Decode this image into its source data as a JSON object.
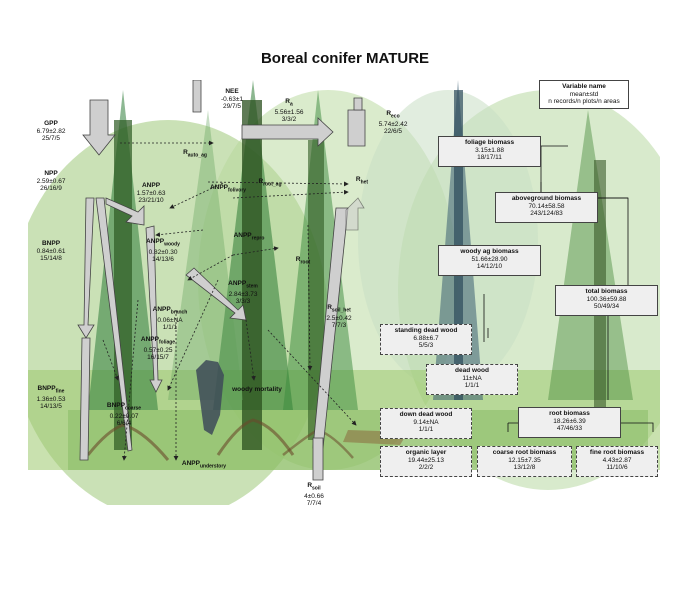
{
  "title": "Boreal conifer MATURE",
  "legend": {
    "line1": "Variable name",
    "line2": "mean±std",
    "line3": "n records/n plots/n areas"
  },
  "fluxes": {
    "gpp": {
      "name": "GPP",
      "value": "6.79±2.82",
      "n": "25/7/5"
    },
    "npp": {
      "name": "NPP",
      "value": "2.59±0.67",
      "n": "26/16/9"
    },
    "bnpp": {
      "name": "BNPP",
      "value": "0.84±0.61",
      "n": "15/14/8"
    },
    "bnpp_fine": {
      "name": "BNPP",
      "sub": "fine",
      "value": "1.36±0.53",
      "n": "14/13/5"
    },
    "bnpp_coarse": {
      "name": "BNPP",
      "sub": "coarse",
      "value": "0.22±0.07",
      "n": "6/6/4"
    },
    "anpp": {
      "name": "ANPP",
      "value": "1.57±0.63",
      "n": "23/21/10"
    },
    "anpp_woody": {
      "name": "ANPP",
      "sub": "woody",
      "value": "0.82±0.30",
      "n": "14/13/6"
    },
    "anpp_branch": {
      "name": "ANPP",
      "sub": "branch",
      "value": "0.06±NA",
      "n": "1/1/1"
    },
    "anpp_foliage": {
      "name": "ANPP",
      "sub": "foliage",
      "value": "0.57±0.25",
      "n": "16/15/7"
    },
    "anpp_stem": {
      "name": "ANPP",
      "sub": "stem",
      "value": "2.84±3.73",
      "n": "3/3/3"
    },
    "anpp_folivory": {
      "name": "ANPP",
      "sub": "folivory"
    },
    "anpp_repro": {
      "name": "ANPP",
      "sub": "repro"
    },
    "anpp_understory": {
      "name": "ANPP",
      "sub": "understory"
    },
    "nee": {
      "name": "NEE",
      "value": "-0.63±1",
      "n": "29/7/5"
    },
    "ra": {
      "name": "R",
      "sub": "a",
      "value": "5.56±1.56",
      "n": "3/3/2"
    },
    "reco": {
      "name": "R",
      "sub": "eco",
      "value": "5.74±2.42",
      "n": "22/6/5"
    },
    "rauto_ag": {
      "name": "R",
      "sub": "auto_ag"
    },
    "rroot_ag": {
      "name": "R",
      "sub": "root_ag"
    },
    "rhet": {
      "name": "R",
      "sub": "het"
    },
    "rroot": {
      "name": "R",
      "sub": "root"
    },
    "rsoil_het": {
      "name": "R",
      "sub": "soil_het",
      "value": "2.5±0.42",
      "n": "7/7/3"
    },
    "rsoil": {
      "name": "R",
      "sub": "soil",
      "value": "4±0.66",
      "n": "7/7/4"
    },
    "woody_mortality": {
      "name": "woody mortality"
    }
  },
  "stocks": {
    "foliage": {
      "name": "foliage biomass",
      "value": "3.15±1.88",
      "n": "18/17/11"
    },
    "aboveground": {
      "name": "aboveground biomass",
      "value": "70.14±58.58",
      "n": "243/124/83"
    },
    "woody_ag": {
      "name": "woody ag biomass",
      "value": "51.66±28.90",
      "n": "14/12/10"
    },
    "total": {
      "name": "total biomass",
      "value": "100.36±59.88",
      "n": "50/49/34"
    },
    "standing_dead": {
      "name": "standing dead wood",
      "value": "6.88±6.7",
      "n": "5/5/3"
    },
    "dead_wood": {
      "name": "dead wood",
      "value": "11±NA",
      "n": "1/1/1"
    },
    "down_dead": {
      "name": "down dead wood",
      "value": "9.14±NA",
      "n": "1/1/1"
    },
    "root": {
      "name": "root biomass",
      "value": "18.26±6.39",
      "n": "47/46/33"
    },
    "organic": {
      "name": "organic layer",
      "value": "19.44±25.13",
      "n": "2/2/2"
    },
    "coarse_root": {
      "name": "coarse root biomass",
      "value": "12.15±7.35",
      "n": "13/12/8"
    },
    "fine_root": {
      "name": "fine root biomass",
      "value": "4.43±2.87",
      "n": "11/10/6"
    }
  }
}
